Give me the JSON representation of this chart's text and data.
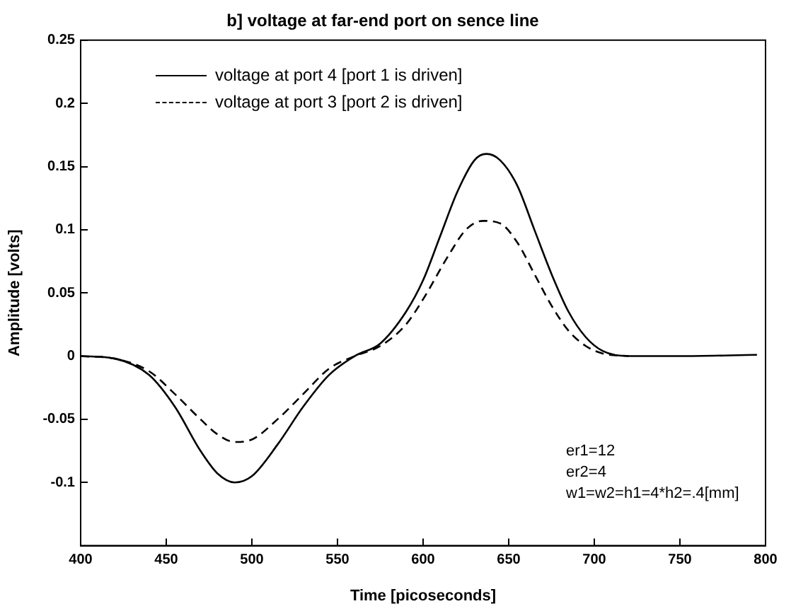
{
  "chart_data": {
    "type": "line",
    "title": "b] voltage at far-end port on sence line",
    "xlabel": "Time [picoseconds]",
    "ylabel": "Amplitude [volts]",
    "xlim": [
      400,
      800
    ],
    "xticks": [
      400,
      450,
      500,
      550,
      600,
      650,
      700,
      750,
      800
    ],
    "ylim": [
      -0.15,
      0.25
    ],
    "yticks": [
      -0.1,
      -0.05,
      0,
      0.05,
      0.1,
      0.15,
      0.2,
      0.25
    ],
    "grid": false,
    "legend": "top",
    "marker": "none",
    "series": [
      {
        "name": "voltage at port 4 [port 1 is driven]",
        "color": "#000000",
        "line_style": "solid",
        "x": [
          400,
          420,
          440,
          455,
          470,
          480,
          490,
          500,
          515,
          530,
          545,
          560,
          575,
          590,
          600,
          610,
          620,
          630,
          637,
          645,
          655,
          665,
          675,
          685,
          695,
          705,
          720,
          750,
          795
        ],
        "values": [
          0,
          -0.002,
          -0.015,
          -0.04,
          -0.075,
          -0.093,
          -0.1,
          -0.095,
          -0.07,
          -0.04,
          -0.015,
          0,
          0.01,
          0.035,
          0.06,
          0.095,
          0.13,
          0.155,
          0.16,
          0.155,
          0.135,
          0.1,
          0.065,
          0.035,
          0.015,
          0.004,
          0,
          0,
          0.001
        ]
      },
      {
        "name": "voltage at port 3 [port 2 is driven]",
        "color": "#000000",
        "line_style": "dashed",
        "x": [
          400,
          420,
          440,
          455,
          470,
          480,
          490,
          500,
          515,
          530,
          545,
          560,
          575,
          590,
          600,
          615,
          625,
          635,
          645,
          655,
          665,
          675,
          685,
          695,
          705,
          720
        ],
        "values": [
          0,
          -0.002,
          -0.012,
          -0.03,
          -0.05,
          -0.062,
          -0.068,
          -0.066,
          -0.05,
          -0.03,
          -0.01,
          0,
          0.008,
          0.025,
          0.045,
          0.08,
          0.1,
          0.107,
          0.105,
          0.09,
          0.065,
          0.04,
          0.02,
          0.008,
          0.002,
          0
        ]
      }
    ],
    "annotations": [
      "er1=12",
      "er2=4",
      "w1=w2=h1=4*h2=.4[mm]"
    ]
  }
}
